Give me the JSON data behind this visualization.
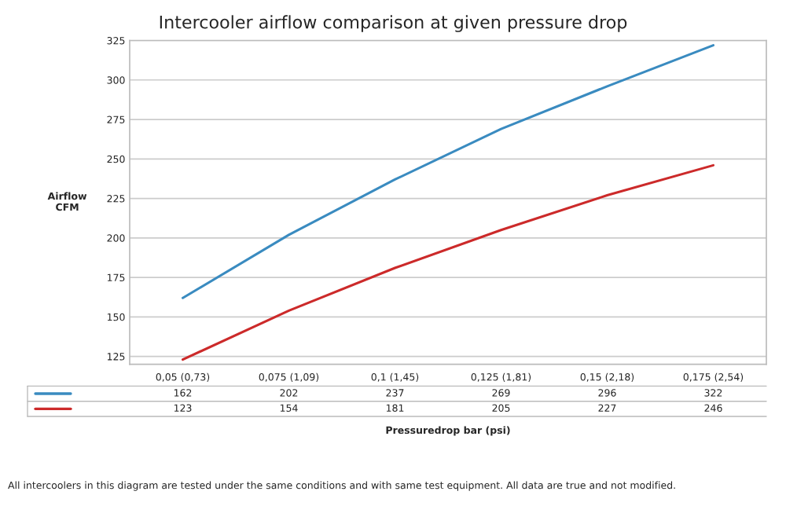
{
  "chart_data": {
    "type": "line",
    "title": "Intercooler airflow comparison at given pressure drop",
    "xlabel": "Pressuredrop bar (psi)",
    "ylabel": "Airflow\nCFM",
    "categories": [
      "0,05 (0,73)",
      "0,075 (1,09)",
      "0,1 (1,45)",
      "0,125 (1,81)",
      "0,15 (2,18)",
      "0,175 (2,54)"
    ],
    "series": [
      {
        "color": "#3a8bc0",
        "values": [
          162,
          202,
          237,
          269,
          296,
          322
        ]
      },
      {
        "color": "#cc2a2a",
        "values": [
          123,
          154,
          181,
          205,
          227,
          246
        ]
      }
    ],
    "ylim": [
      120,
      325
    ],
    "yticks": [
      125,
      150,
      175,
      200,
      225,
      250,
      275,
      300,
      325
    ],
    "grid": "y",
    "data_labels": true,
    "marker": "none",
    "line_style": "solid",
    "annotations": [
      "All intercoolers in this diagram are tested under the same conditions and with same test equipment. All data are true and not modified."
    ]
  }
}
